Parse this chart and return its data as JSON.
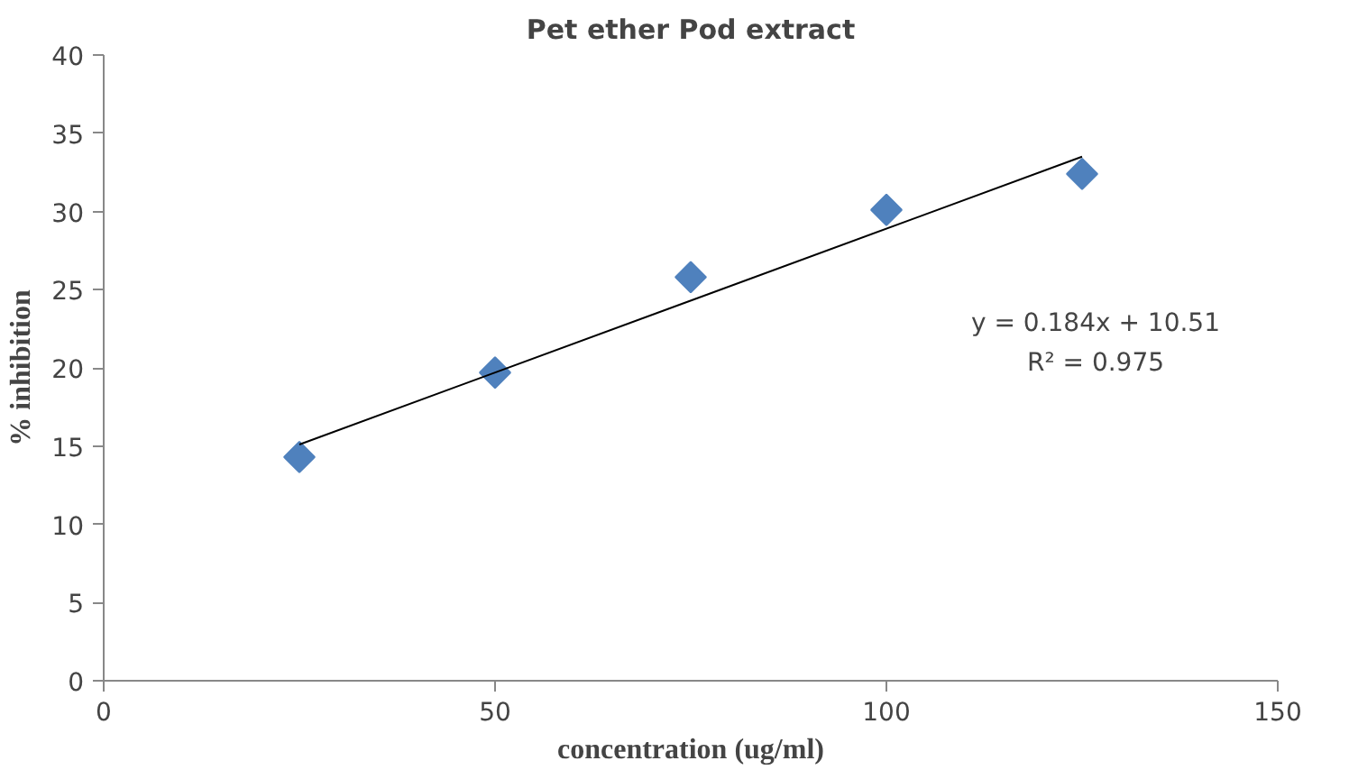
{
  "chart_data": {
    "type": "scatter",
    "title": "Pet ether Pod extract",
    "xlabel": "concentration (ug/ml)",
    "ylabel": "% inhibition",
    "x": [
      25,
      50,
      75,
      100,
      125
    ],
    "series": [
      {
        "color": "#4f81bd",
        "values": [
          14.3,
          19.7,
          25.8,
          30.1,
          32.4
        ],
        "marker": "diamond"
      },
      {
        "type": "line",
        "color": "#000000",
        "x": [
          25,
          125
        ],
        "values": [
          15.1,
          33.5
        ],
        "marker": "none",
        "line_style": "solid"
      }
    ],
    "annotations": [
      "y = 0.184x + 10.51",
      "R² = 0.975"
    ],
    "xlim": [
      0,
      150
    ],
    "xticks": [
      0,
      50,
      100,
      150
    ],
    "ylim": [
      0,
      40
    ],
    "yticks": [
      0,
      5,
      10,
      15,
      20,
      25,
      30,
      35,
      40
    ],
    "grid": false
  }
}
